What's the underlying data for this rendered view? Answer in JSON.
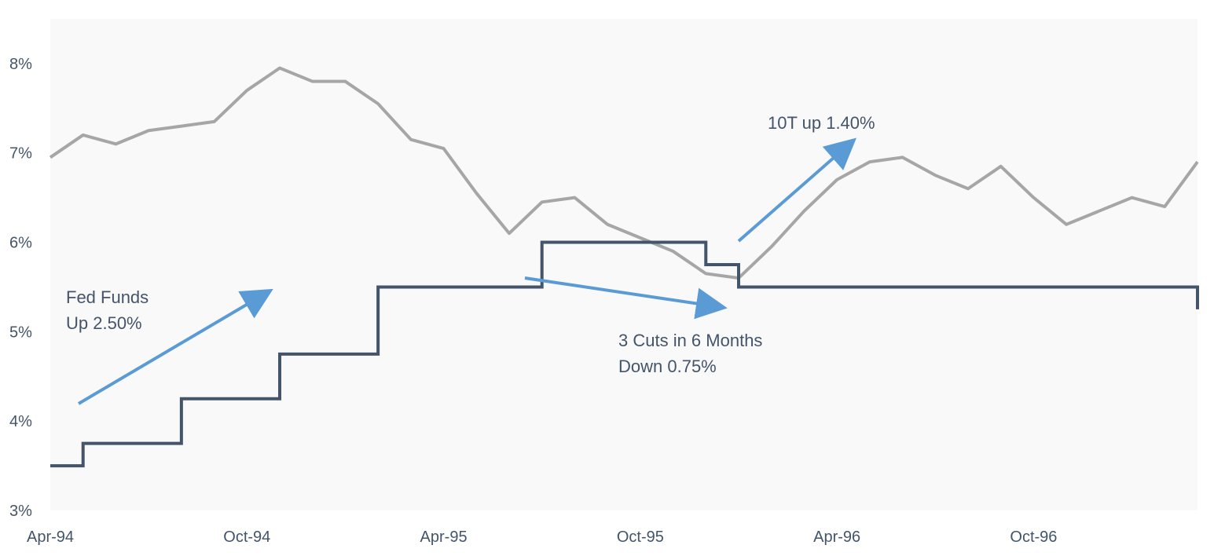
{
  "chart_data": {
    "type": "line",
    "title": "",
    "xlabel": "",
    "ylabel": "",
    "x_tick_labels": [
      "Apr-94",
      "Oct-94",
      "Apr-95",
      "Oct-95",
      "Apr-96",
      "Oct-96"
    ],
    "y_tick_labels": [
      "3%",
      "4%",
      "5%",
      "6%",
      "7%",
      "8%"
    ],
    "x_range": [
      "1994-04",
      "1997-03"
    ],
    "ylim": [
      3,
      8.5
    ],
    "grid": false,
    "legend": "none",
    "series": [
      {
        "color": "#a6a6a6",
        "x": [
          "1994-04",
          "1994-05",
          "1994-06",
          "1994-07",
          "1994-08",
          "1994-09",
          "1994-10",
          "1994-11",
          "1994-12",
          "1995-01",
          "1995-02",
          "1995-03",
          "1995-04",
          "1995-05",
          "1995-06",
          "1995-07",
          "1995-08",
          "1995-09",
          "1995-10",
          "1995-11",
          "1995-12",
          "1996-01",
          "1996-02",
          "1996-03",
          "1996-04",
          "1996-05",
          "1996-06",
          "1996-07",
          "1996-08",
          "1996-09",
          "1996-10",
          "1996-11",
          "1996-12",
          "1997-01",
          "1997-02",
          "1997-03"
        ],
        "values": [
          6.95,
          7.2,
          7.1,
          7.25,
          7.3,
          7.35,
          7.7,
          7.95,
          7.8,
          7.8,
          7.55,
          7.15,
          7.05,
          6.55,
          6.1,
          6.45,
          6.5,
          6.2,
          6.05,
          5.9,
          5.65,
          5.6,
          5.95,
          6.35,
          6.7,
          6.9,
          6.95,
          6.75,
          6.6,
          6.85,
          6.5,
          6.2,
          6.35,
          6.5,
          6.4,
          6.9
        ]
      },
      {
        "color": "#44546a",
        "step": true,
        "x": [
          "1994-04",
          "1994-05",
          "1994-08",
          "1994-11",
          "1995-02",
          "1995-07",
          "1995-12",
          "1996-01",
          "1997-03"
        ],
        "values": [
          3.5,
          3.75,
          4.25,
          4.75,
          5.5,
          6.0,
          5.75,
          5.5,
          5.25
        ]
      }
    ],
    "annotations": [
      {
        "lines": [
          "Fed Funds",
          "Up 2.50%"
        ]
      },
      {
        "lines": [
          "3 Cuts in 6 Months",
          "Down 0.75%"
        ]
      },
      {
        "lines": [
          "10T up 1.40%"
        ]
      }
    ]
  }
}
